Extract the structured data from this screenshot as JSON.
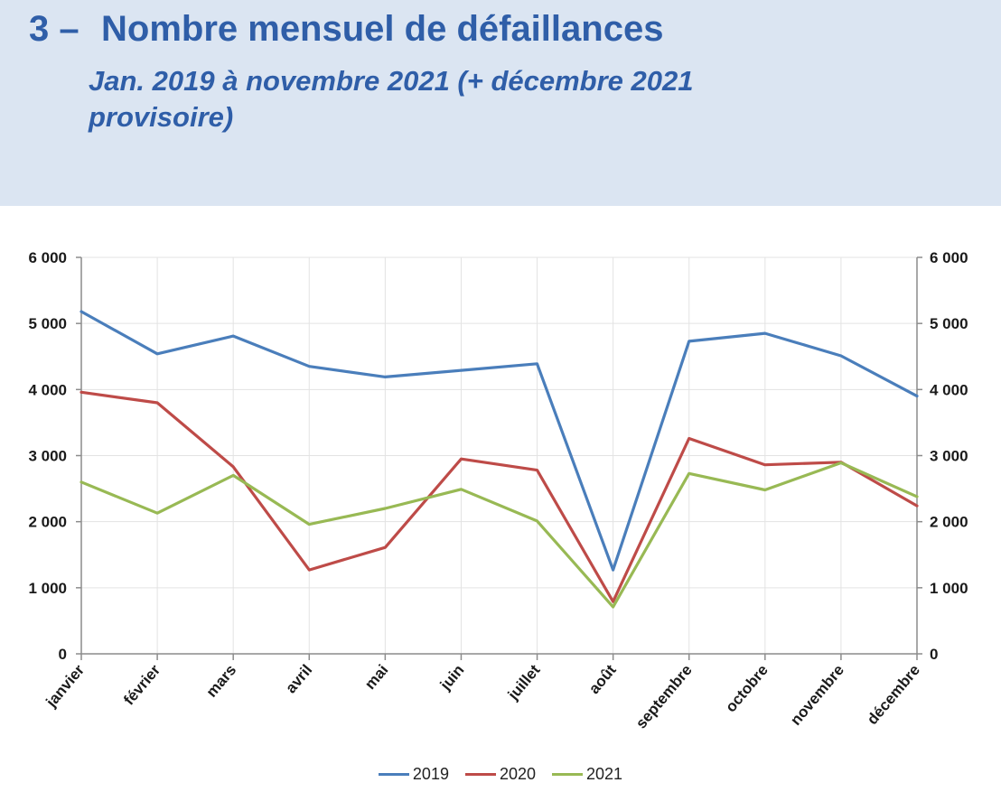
{
  "header": {
    "number": "3 –",
    "title": "Nombre mensuel de défaillances",
    "subtitle": "Jan. 2019 à novembre 2021 (+ décembre 2021 provisoire)"
  },
  "chart_data": {
    "type": "line",
    "categories": [
      "janvier",
      "février",
      "mars",
      "avril",
      "mai",
      "juin",
      "juillet",
      "août",
      "septembre",
      "octobre",
      "novembre",
      "décembre"
    ],
    "series": [
      {
        "name": "2019",
        "color": "#4a7ebb",
        "values": [
          5180,
          4540,
          4810,
          4350,
          4190,
          4290,
          4390,
          1270,
          4730,
          4850,
          4510,
          3900
        ]
      },
      {
        "name": "2020",
        "color": "#be4b48",
        "values": [
          3960,
          3800,
          2830,
          1270,
          1610,
          2950,
          2780,
          790,
          3260,
          2860,
          2900,
          2240
        ]
      },
      {
        "name": "2021",
        "color": "#98b954",
        "values": [
          2600,
          2130,
          2700,
          1960,
          2200,
          2490,
          2010,
          710,
          2730,
          2480,
          2890,
          2380
        ]
      }
    ],
    "yticks": [
      "0",
      "1 000",
      "2 000",
      "3 000",
      "4 000",
      "5 000",
      "6 000"
    ],
    "ylim": [
      0,
      6000
    ],
    "secondary_axis": true,
    "grid": "vertical and horizontal",
    "legend_position": "bottom"
  }
}
